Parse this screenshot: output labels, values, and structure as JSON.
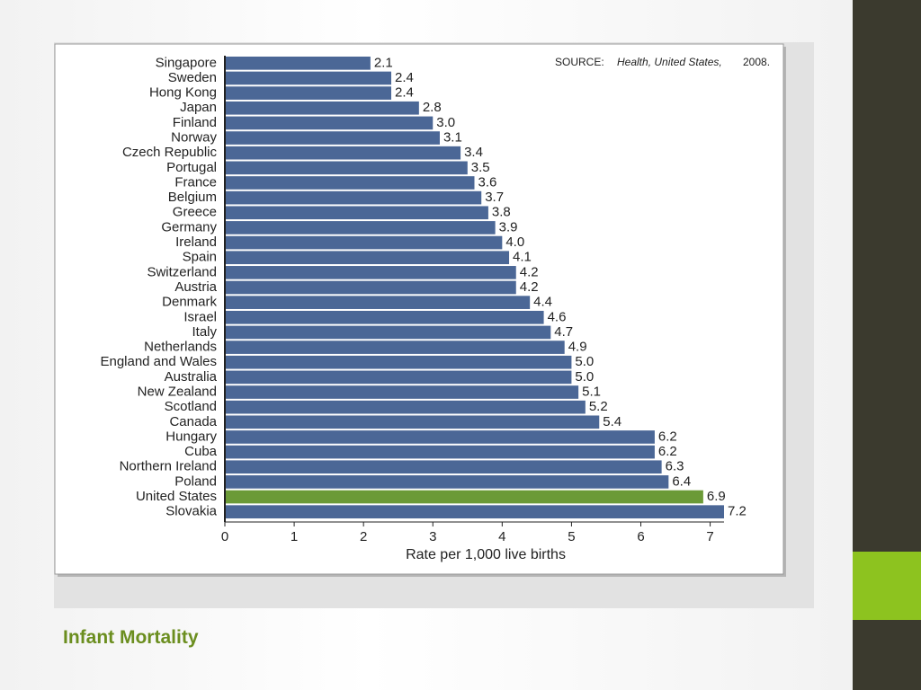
{
  "chart_data": {
    "type": "hbar",
    "title": "Infant Mortality",
    "source": {
      "label": "SOURCE:",
      "title": "Health, United States,",
      "year": "2008."
    },
    "x_label": "Rate per 1,000 live births",
    "categories": [
      "Singapore",
      "Sweden",
      "Hong Kong",
      "Japan",
      "Finland",
      "Norway",
      "Czech Republic",
      "Portugal",
      "France",
      "Belgium",
      "Greece",
      "Germany",
      "Ireland",
      "Spain",
      "Switzerland",
      "Austria",
      "Denmark",
      "Israel",
      "Italy",
      "Netherlands",
      "England and Wales",
      "Australia",
      "New Zealand",
      "Scotland",
      "Canada",
      "Hungary",
      "Cuba",
      "Northern Ireland",
      "Poland",
      "United States",
      "Slovakia"
    ],
    "values": [
      2.1,
      2.4,
      2.4,
      2.8,
      3.0,
      3.1,
      3.4,
      3.5,
      3.6,
      3.7,
      3.8,
      3.9,
      4.0,
      4.1,
      4.2,
      4.2,
      4.4,
      4.6,
      4.7,
      4.9,
      5.0,
      5.0,
      5.1,
      5.2,
      5.4,
      6.2,
      6.2,
      6.3,
      6.4,
      6.9,
      7.2
    ],
    "value_labels": [
      "2.1",
      "2.4",
      "2.4",
      "2.8",
      "3.0",
      "3.1",
      "3.4",
      "3.5",
      "3.6",
      "3.7",
      "3.8",
      "3.9",
      "4.0",
      "4.1",
      "4.2",
      "4.2",
      "4.4",
      "4.6",
      "4.7",
      "4.9",
      "5.0",
      "5.0",
      "5.1",
      "5.2",
      "5.4",
      "6.2",
      "6.2",
      "6.3",
      "6.4",
      "6.9",
      "7.2"
    ],
    "colors": [
      "#4b6796",
      "#4b6796",
      "#4b6796",
      "#4b6796",
      "#4b6796",
      "#4b6796",
      "#4b6796",
      "#4b6796",
      "#4b6796",
      "#4b6796",
      "#4b6796",
      "#4b6796",
      "#4b6796",
      "#4b6796",
      "#4b6796",
      "#4b6796",
      "#4b6796",
      "#4b6796",
      "#4b6796",
      "#4b6796",
      "#4b6796",
      "#4b6796",
      "#4b6796",
      "#4b6796",
      "#4b6796",
      "#4b6796",
      "#4b6796",
      "#4b6796",
      "#4b6796",
      "#6b9a37",
      "#4b6796"
    ],
    "xlim": [
      0,
      7.2
    ],
    "xticks": [
      0,
      1,
      2,
      3,
      4,
      5,
      6,
      7
    ]
  }
}
